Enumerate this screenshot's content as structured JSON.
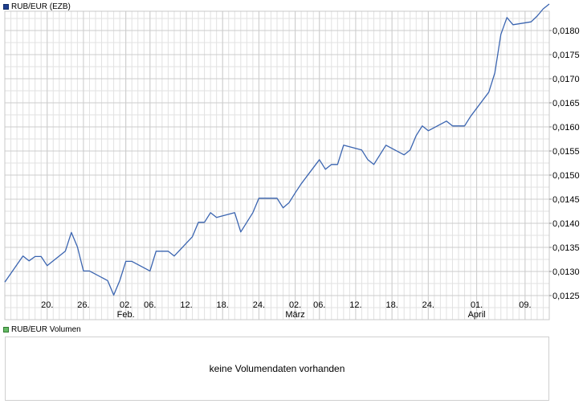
{
  "legend": {
    "main_label": "RUB/EUR (EZB)",
    "main_color": "#1f3f8f",
    "volume_label": "RUB/EUR Volumen",
    "volume_color": "#66bb66"
  },
  "volume": {
    "message": "keine Volumendaten vorhanden"
  },
  "chart_data": {
    "type": "line",
    "title": "",
    "xlabel": "",
    "ylabel": "",
    "ylim": [
      0.012,
      0.0184
    ],
    "y_ticks": [
      0.0125,
      0.013,
      0.0135,
      0.014,
      0.0145,
      0.015,
      0.0155,
      0.016,
      0.0165,
      0.017,
      0.0175,
      0.018
    ],
    "y_tick_labels": [
      "0,0125",
      "0,0130",
      "0,0135",
      "0,0140",
      "0,0145",
      "0,0150",
      "0,0155",
      "0,0160",
      "0,0165",
      "0,0170",
      "0,0175",
      "0,0180"
    ],
    "x_range": [
      "2023-01-13",
      "2023-04-13"
    ],
    "x_ticks": [
      {
        "date": "2023-01-20",
        "label": "20.",
        "sublabel": ""
      },
      {
        "date": "2023-01-26",
        "label": "26.",
        "sublabel": ""
      },
      {
        "date": "2023-02-02",
        "label": "02.",
        "sublabel": "Feb."
      },
      {
        "date": "2023-02-06",
        "label": "06.",
        "sublabel": ""
      },
      {
        "date": "2023-02-12",
        "label": "12.",
        "sublabel": ""
      },
      {
        "date": "2023-02-18",
        "label": "18.",
        "sublabel": ""
      },
      {
        "date": "2023-02-24",
        "label": "24.",
        "sublabel": ""
      },
      {
        "date": "2023-03-02",
        "label": "02.",
        "sublabel": "März"
      },
      {
        "date": "2023-03-06",
        "label": "06.",
        "sublabel": ""
      },
      {
        "date": "2023-03-12",
        "label": "12.",
        "sublabel": ""
      },
      {
        "date": "2023-03-18",
        "label": "18.",
        "sublabel": ""
      },
      {
        "date": "2023-03-24",
        "label": "24.",
        "sublabel": ""
      },
      {
        "date": "2023-04-01",
        "label": "01.",
        "sublabel": "April"
      },
      {
        "date": "2023-04-09",
        "label": "09.",
        "sublabel": ""
      }
    ],
    "grid": true,
    "line_color": "#3a64b0",
    "series": [
      {
        "x": [
          "2023-01-13",
          "2023-01-16",
          "2023-01-17",
          "2023-01-18",
          "2023-01-19",
          "2023-01-20",
          "2023-01-23",
          "2023-01-24",
          "2023-01-25",
          "2023-01-26",
          "2023-01-27",
          "2023-01-30",
          "2023-01-31",
          "2023-02-01",
          "2023-02-02",
          "2023-02-03",
          "2023-02-06",
          "2023-02-07",
          "2023-02-08",
          "2023-02-09",
          "2023-02-10",
          "2023-02-13",
          "2023-02-14",
          "2023-02-15",
          "2023-02-16",
          "2023-02-17",
          "2023-02-20",
          "2023-02-21",
          "2023-02-22",
          "2023-02-23",
          "2023-02-24",
          "2023-02-27",
          "2023-02-28",
          "2023-03-01",
          "2023-03-02",
          "2023-03-03",
          "2023-03-06",
          "2023-03-07",
          "2023-03-08",
          "2023-03-09",
          "2023-03-10",
          "2023-03-13",
          "2023-03-14",
          "2023-03-15",
          "2023-03-16",
          "2023-03-17",
          "2023-03-20",
          "2023-03-21",
          "2023-03-22",
          "2023-03-23",
          "2023-03-24",
          "2023-03-27",
          "2023-03-28",
          "2023-03-29",
          "2023-03-30",
          "2023-03-31",
          "2023-04-03",
          "2023-04-04",
          "2023-04-05",
          "2023-04-06",
          "2023-04-07",
          "2023-04-10",
          "2023-04-11",
          "2023-04-12",
          "2023-04-13"
        ],
        "values": [
          0.01278,
          0.01332,
          0.01322,
          0.01331,
          0.01331,
          0.01312,
          0.01342,
          0.01381,
          0.01351,
          0.01301,
          0.01301,
          0.01281,
          0.01251,
          0.01281,
          0.01321,
          0.01321,
          0.01301,
          0.01342,
          0.01342,
          0.01342,
          0.01332,
          0.01372,
          0.01402,
          0.01402,
          0.01422,
          0.01412,
          0.01422,
          0.01382,
          0.01402,
          0.01422,
          0.01452,
          0.01452,
          0.01432,
          0.01443,
          0.01463,
          0.01482,
          0.01532,
          0.01512,
          0.01522,
          0.01522,
          0.01562,
          0.01552,
          0.01532,
          0.01522,
          0.01542,
          0.01562,
          0.01542,
          0.01552,
          0.01582,
          0.01602,
          0.01592,
          0.01612,
          0.01602,
          0.01602,
          0.01602,
          0.01622,
          0.01672,
          0.01712,
          0.01792,
          0.01827,
          0.01812,
          0.01818,
          0.0183,
          0.01845,
          0.01855
        ]
      }
    ]
  }
}
